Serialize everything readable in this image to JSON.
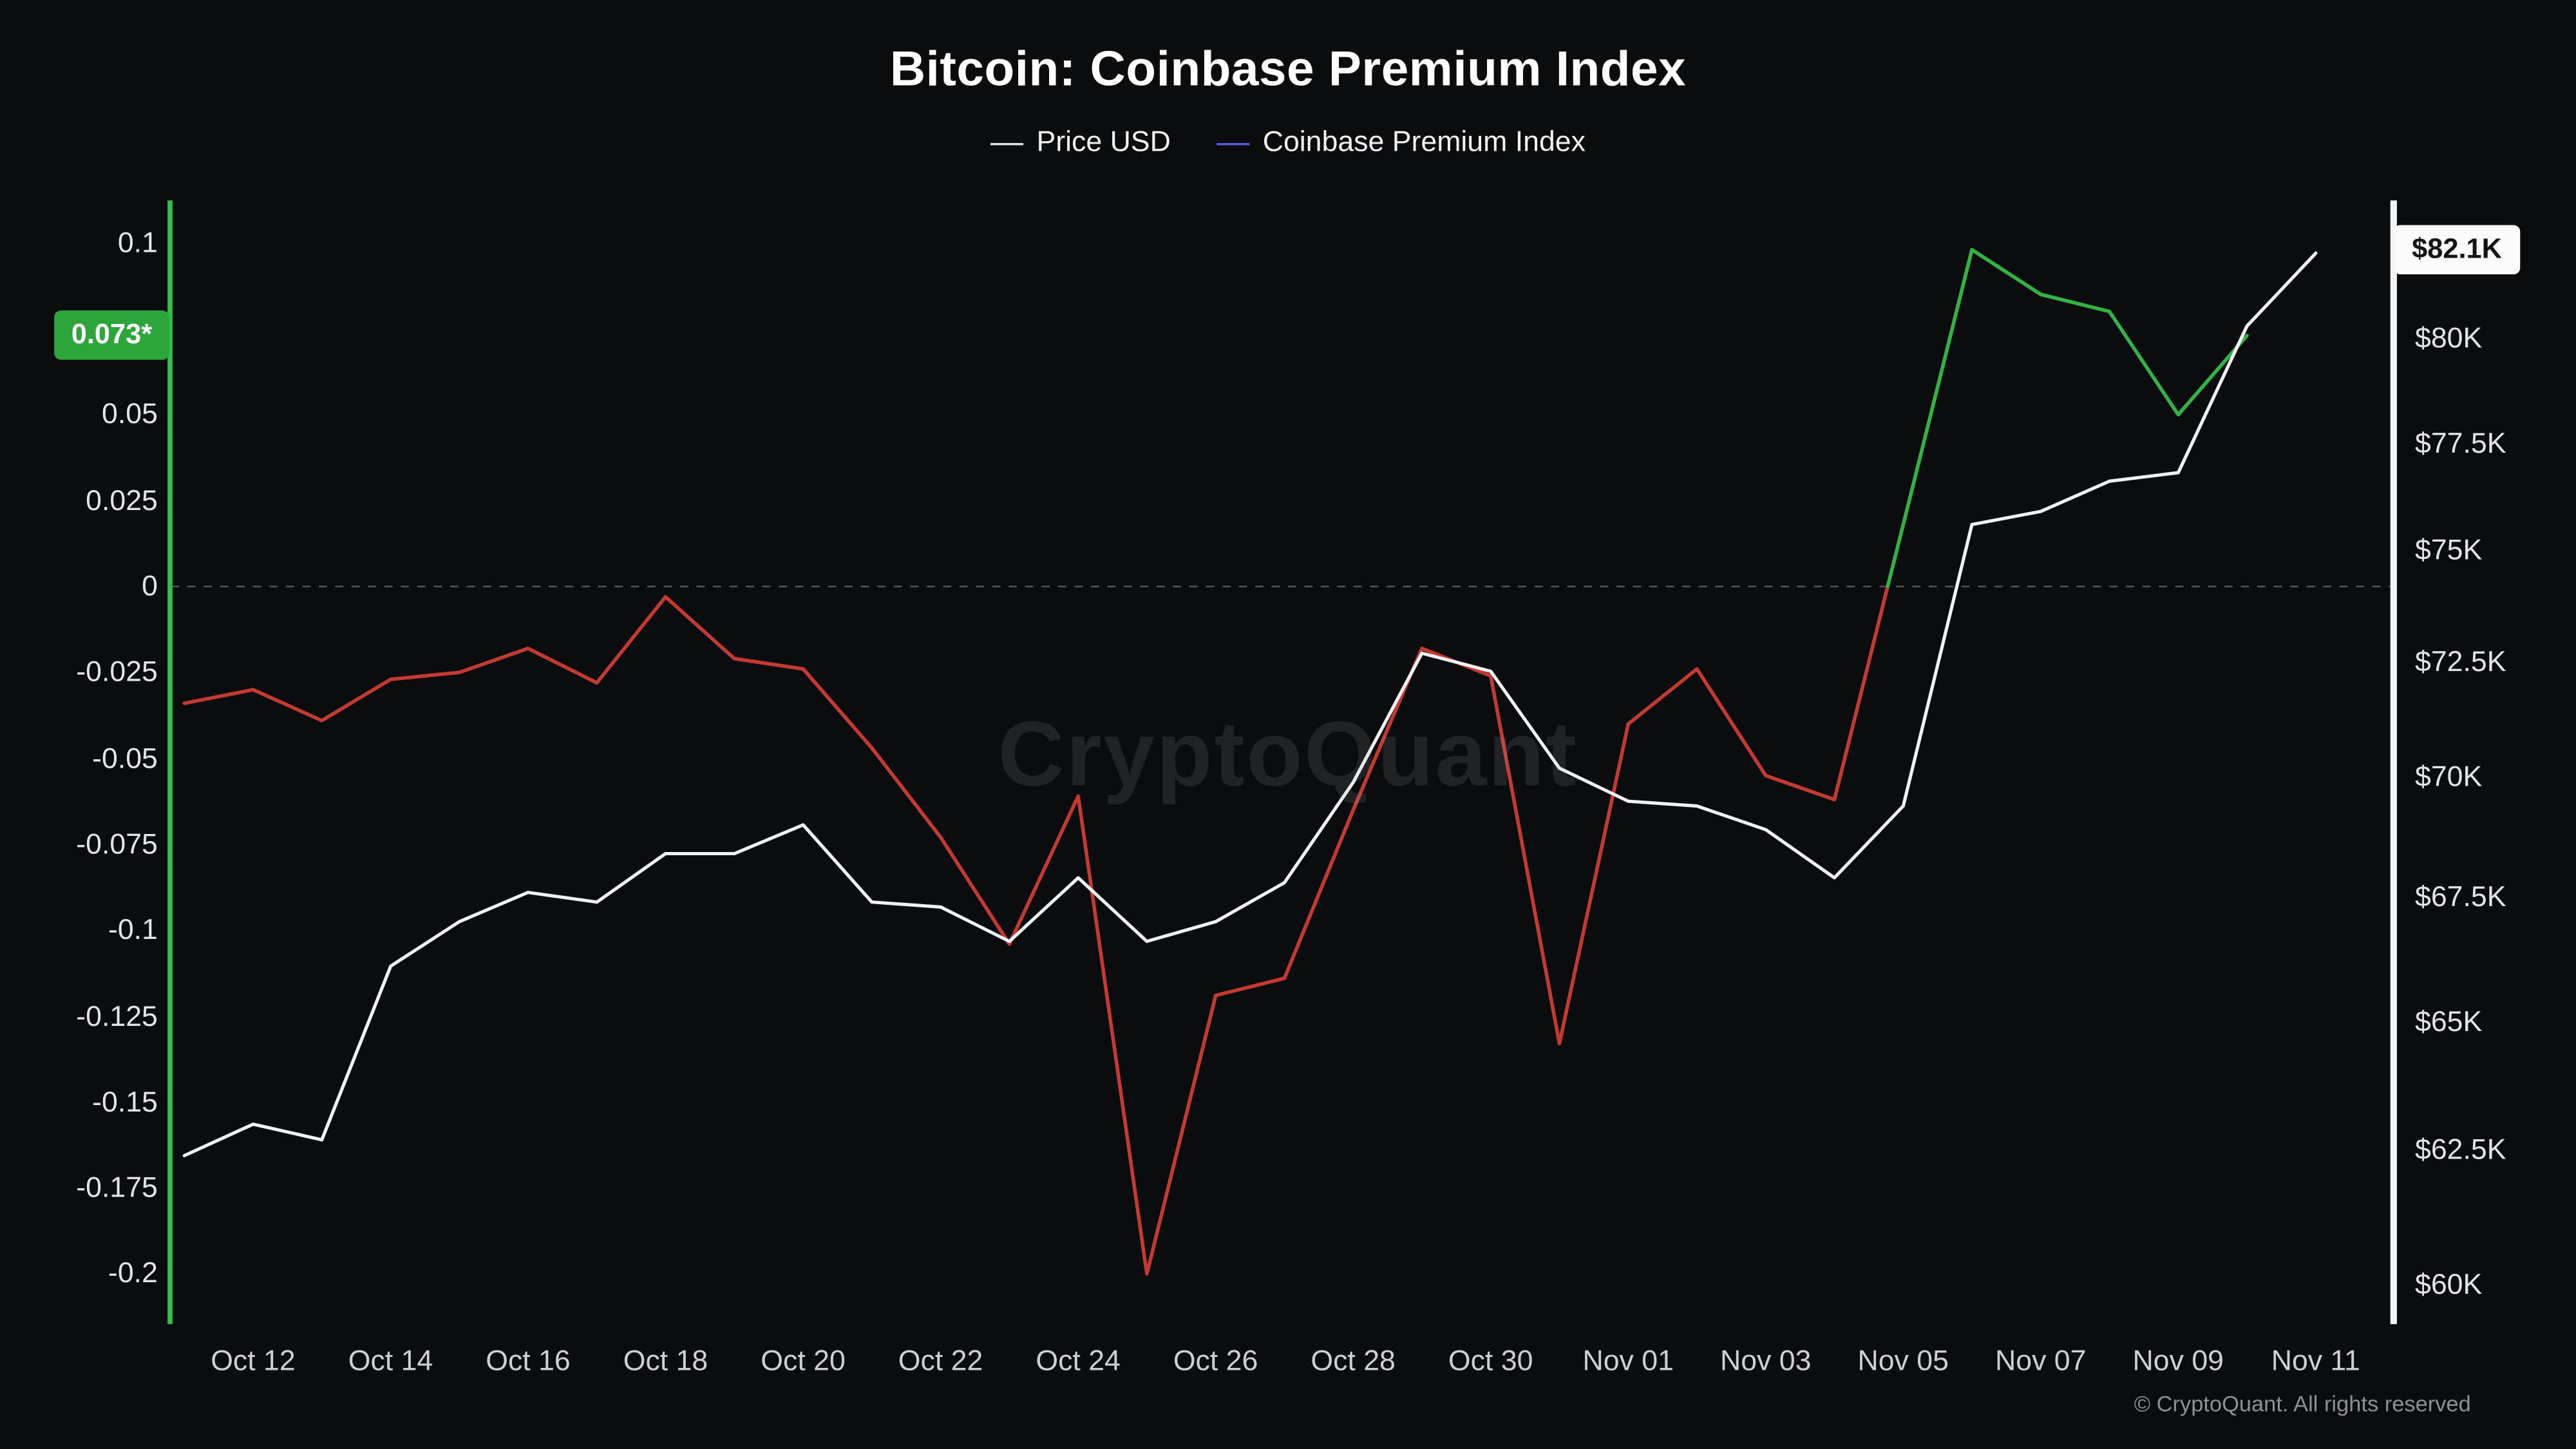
{
  "header": {
    "title": "Bitcoin: Coinbase Premium Index",
    "legend": [
      {
        "label": "Price USD",
        "color": "#e9e9eb"
      },
      {
        "label": "Coinbase Premium Index",
        "color": "#5a5fe0"
      }
    ]
  },
  "badges": {
    "premium_last": "0.073*",
    "price_last": "$82.1K"
  },
  "watermark": "CryptoQuant",
  "footer": "© CryptoQuant. All rights reserved",
  "colors": {
    "background": "#0b0c0e",
    "price_line": "#f0f1f2",
    "premium_negative": "#c23a32",
    "premium_positive": "#33b345",
    "left_axis_spine": "#2fc046",
    "right_axis_spine": "#f2f3f4",
    "zero_line": "#53555a"
  },
  "chart_data": {
    "type": "line",
    "title": "Bitcoin: Coinbase Premium Index",
    "x_tick_row": "dates",
    "zero_reference_line": true,
    "dates": [
      "Oct 11",
      "Oct 12",
      "Oct 13",
      "Oct 14",
      "Oct 15",
      "Oct 16",
      "Oct 17",
      "Oct 18",
      "Oct 19",
      "Oct 20",
      "Oct 21",
      "Oct 22",
      "Oct 23",
      "Oct 24",
      "Oct 25",
      "Oct 26",
      "Oct 27",
      "Oct 28",
      "Oct 29",
      "Oct 30",
      "Oct 31",
      "Nov 01",
      "Nov 02",
      "Nov 03",
      "Nov 04",
      "Nov 05",
      "Nov 06",
      "Nov 07",
      "Nov 08",
      "Nov 09",
      "Nov 10",
      "Nov 11"
    ],
    "series": [
      {
        "name": "Price USD",
        "unit": "USD thousands",
        "axis": "right",
        "scale": "log",
        "color": "#f0f1f2",
        "values": [
          62.4,
          63.0,
          62.7,
          66.1,
          67.0,
          67.6,
          67.4,
          68.4,
          68.4,
          69.0,
          67.4,
          67.3,
          66.6,
          67.9,
          66.6,
          67.0,
          67.8,
          69.9,
          72.7,
          72.3,
          70.2,
          69.5,
          69.4,
          68.9,
          67.9,
          69.4,
          75.6,
          75.9,
          76.6,
          76.8,
          80.3,
          82.1
        ]
      },
      {
        "name": "Coinbase Premium Index",
        "axis": "left",
        "scale": "linear",
        "color_negative": "#c23a32",
        "color_positive": "#33b345",
        "values": [
          -0.034,
          -0.03,
          -0.039,
          -0.027,
          -0.025,
          -0.018,
          -0.028,
          -0.003,
          -0.021,
          -0.024,
          -0.047,
          -0.073,
          -0.104,
          -0.061,
          -0.2,
          -0.119,
          -0.114,
          -0.065,
          -0.018,
          -0.026,
          -0.133,
          -0.04,
          -0.024,
          -0.055,
          -0.062,
          0.018,
          0.098,
          0.085,
          0.08,
          0.05,
          0.073,
          null
        ]
      }
    ],
    "left_axis": {
      "label": "Coinbase Premium Index",
      "range": [
        -0.215,
        0.112
      ],
      "ticks": [
        {
          "label": "0.1",
          "value": 0.1
        },
        {
          "label": "0.05",
          "value": 0.05
        },
        {
          "label": "0.025",
          "value": 0.025
        },
        {
          "label": "0",
          "value": 0
        },
        {
          "label": "-0.025",
          "value": -0.025
        },
        {
          "label": "-0.05",
          "value": -0.05
        },
        {
          "label": "-0.075",
          "value": -0.075
        },
        {
          "label": "-0.1",
          "value": -0.1
        },
        {
          "label": "-0.125",
          "value": -0.125
        },
        {
          "label": "-0.15",
          "value": -0.15
        },
        {
          "label": "-0.175",
          "value": -0.175
        },
        {
          "label": "-0.2",
          "value": -0.2
        }
      ]
    },
    "right_axis": {
      "label": "Price USD",
      "scale": "log",
      "ticks": [
        {
          "label": "$80K",
          "value": 80
        },
        {
          "label": "$77.5K",
          "value": 77.5
        },
        {
          "label": "$75K",
          "value": 75
        },
        {
          "label": "$72.5K",
          "value": 72.5
        },
        {
          "label": "$70K",
          "value": 70
        },
        {
          "label": "$67.5K",
          "value": 67.5
        },
        {
          "label": "$65K",
          "value": 65
        },
        {
          "label": "$62.5K",
          "value": 62.5
        },
        {
          "label": "$60K",
          "value": 60
        }
      ]
    },
    "x_axis": {
      "ticks": [
        {
          "label": "Oct 12",
          "day": 1
        },
        {
          "label": "Oct 14",
          "day": 3
        },
        {
          "label": "Oct 16",
          "day": 5
        },
        {
          "label": "Oct 18",
          "day": 7
        },
        {
          "label": "Oct 20",
          "day": 9
        },
        {
          "label": "Oct 22",
          "day": 11
        },
        {
          "label": "Oct 24",
          "day": 13
        },
        {
          "label": "Oct 26",
          "day": 15
        },
        {
          "label": "Oct 28",
          "day": 17
        },
        {
          "label": "Oct 30",
          "day": 19
        },
        {
          "label": "Nov 01",
          "day": 21
        },
        {
          "label": "Nov 03",
          "day": 23
        },
        {
          "label": "Nov 05",
          "day": 25
        },
        {
          "label": "Nov 07",
          "day": 27
        },
        {
          "label": "Nov 09",
          "day": 29
        },
        {
          "label": "Nov 11",
          "day": 31
        }
      ]
    }
  }
}
